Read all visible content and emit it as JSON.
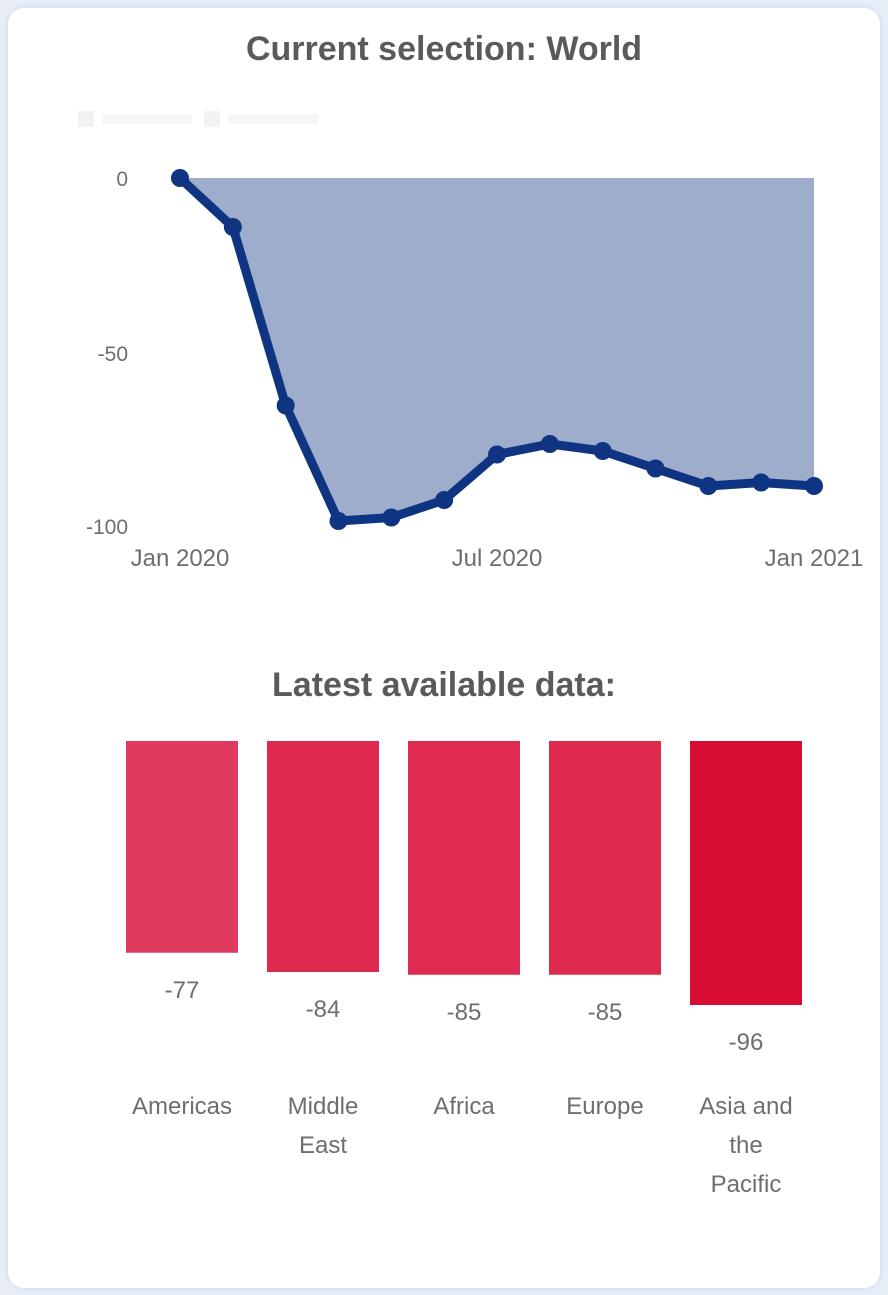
{
  "header": {
    "title": "Current selection: World"
  },
  "bottom": {
    "title": "Latest available data:"
  },
  "colors": {
    "line": "#0f3582",
    "area": "#9dadcb",
    "bar_light": "#e03a5e",
    "bar_mid": "#de2a4e",
    "bar_dark": "#d80d34"
  },
  "chart_data": [
    {
      "type": "area",
      "title": "Current selection: World",
      "x_tick_labels": [
        "Jan 2020",
        "Jul 2020",
        "Jan 2021"
      ],
      "y_tick_labels": [
        "0",
        "-50",
        "-100"
      ],
      "y_ticks": [
        0,
        -50,
        -100
      ],
      "ylim": [
        -100,
        0
      ],
      "x": [
        "2020-01",
        "2020-02",
        "2020-03",
        "2020-04",
        "2020-05",
        "2020-06",
        "2020-07",
        "2020-08",
        "2020-09",
        "2020-10",
        "2020-11",
        "2020-12",
        "2021-01"
      ],
      "values": [
        0,
        -14,
        -65,
        -98,
        -97,
        -92,
        -79,
        -76,
        -78,
        -83,
        -88,
        -87,
        -88
      ],
      "grid": false
    },
    {
      "type": "bar",
      "title": "Latest available data:",
      "categories": [
        "Americas",
        "Middle East",
        "Africa",
        "Europe",
        "Asia and the Pacific"
      ],
      "category_lines": [
        [
          "Americas"
        ],
        [
          "Middle",
          "East"
        ],
        [
          "Africa"
        ],
        [
          "Europe"
        ],
        [
          "Asia and",
          "the",
          "Pacific"
        ]
      ],
      "values": [
        -77,
        -84,
        -85,
        -85,
        -96
      ],
      "labels": [
        "-77",
        "-84",
        "-85",
        "-85",
        "-96"
      ],
      "colors": [
        "#e03a5e",
        "#de2a4e",
        "#df2b4f",
        "#dd2a4d",
        "#d80d34"
      ]
    }
  ]
}
